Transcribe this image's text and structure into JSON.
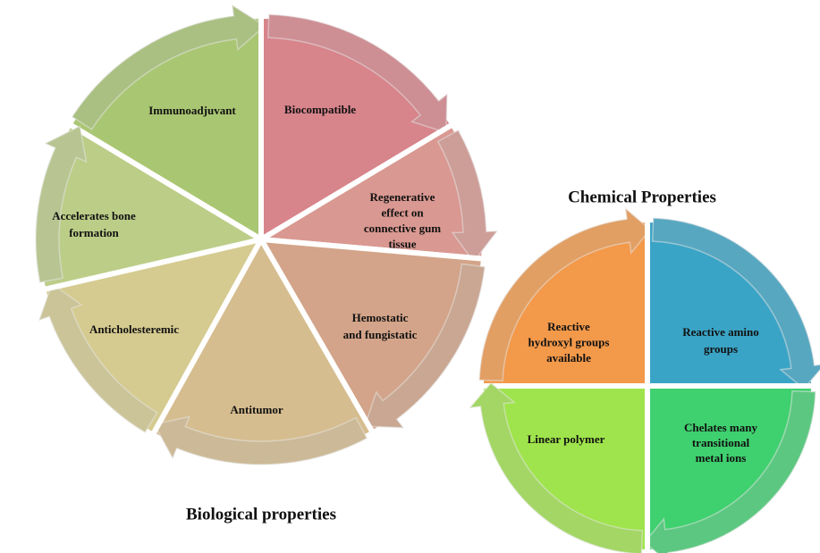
{
  "biological": {
    "title": "Biological properties",
    "segments": [
      {
        "label": [
          "Immunoadjuvant"
        ],
        "color": "#a9c672"
      },
      {
        "label": [
          "Biocompatible"
        ],
        "color": "#d7848b"
      },
      {
        "label": [
          "Regenerative",
          "effect on",
          "connective gum",
          "tissue"
        ],
        "color": "#d99891"
      },
      {
        "label": [
          "Hemostatic",
          "and fungistatic"
        ],
        "color": "#d3a489"
      },
      {
        "label": [
          "Antitumor"
        ],
        "color": "#d6bd8f"
      },
      {
        "label": [
          "Anticholesteremic"
        ],
        "color": "#d5cb90"
      },
      {
        "label": [
          "Accelerates bone",
          "formation"
        ],
        "color": "#bccd88"
      }
    ]
  },
  "chemical": {
    "title": "Chemical Properties",
    "segments": [
      {
        "label": [
          "Reactive",
          "hydroxyl groups",
          "available"
        ],
        "color": "#f3994a"
      },
      {
        "label": [
          "Reactive amino",
          "groups"
        ],
        "color": "#3aa4c6"
      },
      {
        "label": [
          "Chelates many",
          "transitional",
          "metal ions"
        ],
        "color": "#3fd06f"
      },
      {
        "label": [
          "Linear polymer"
        ],
        "color": "#9fe44c"
      }
    ]
  }
}
